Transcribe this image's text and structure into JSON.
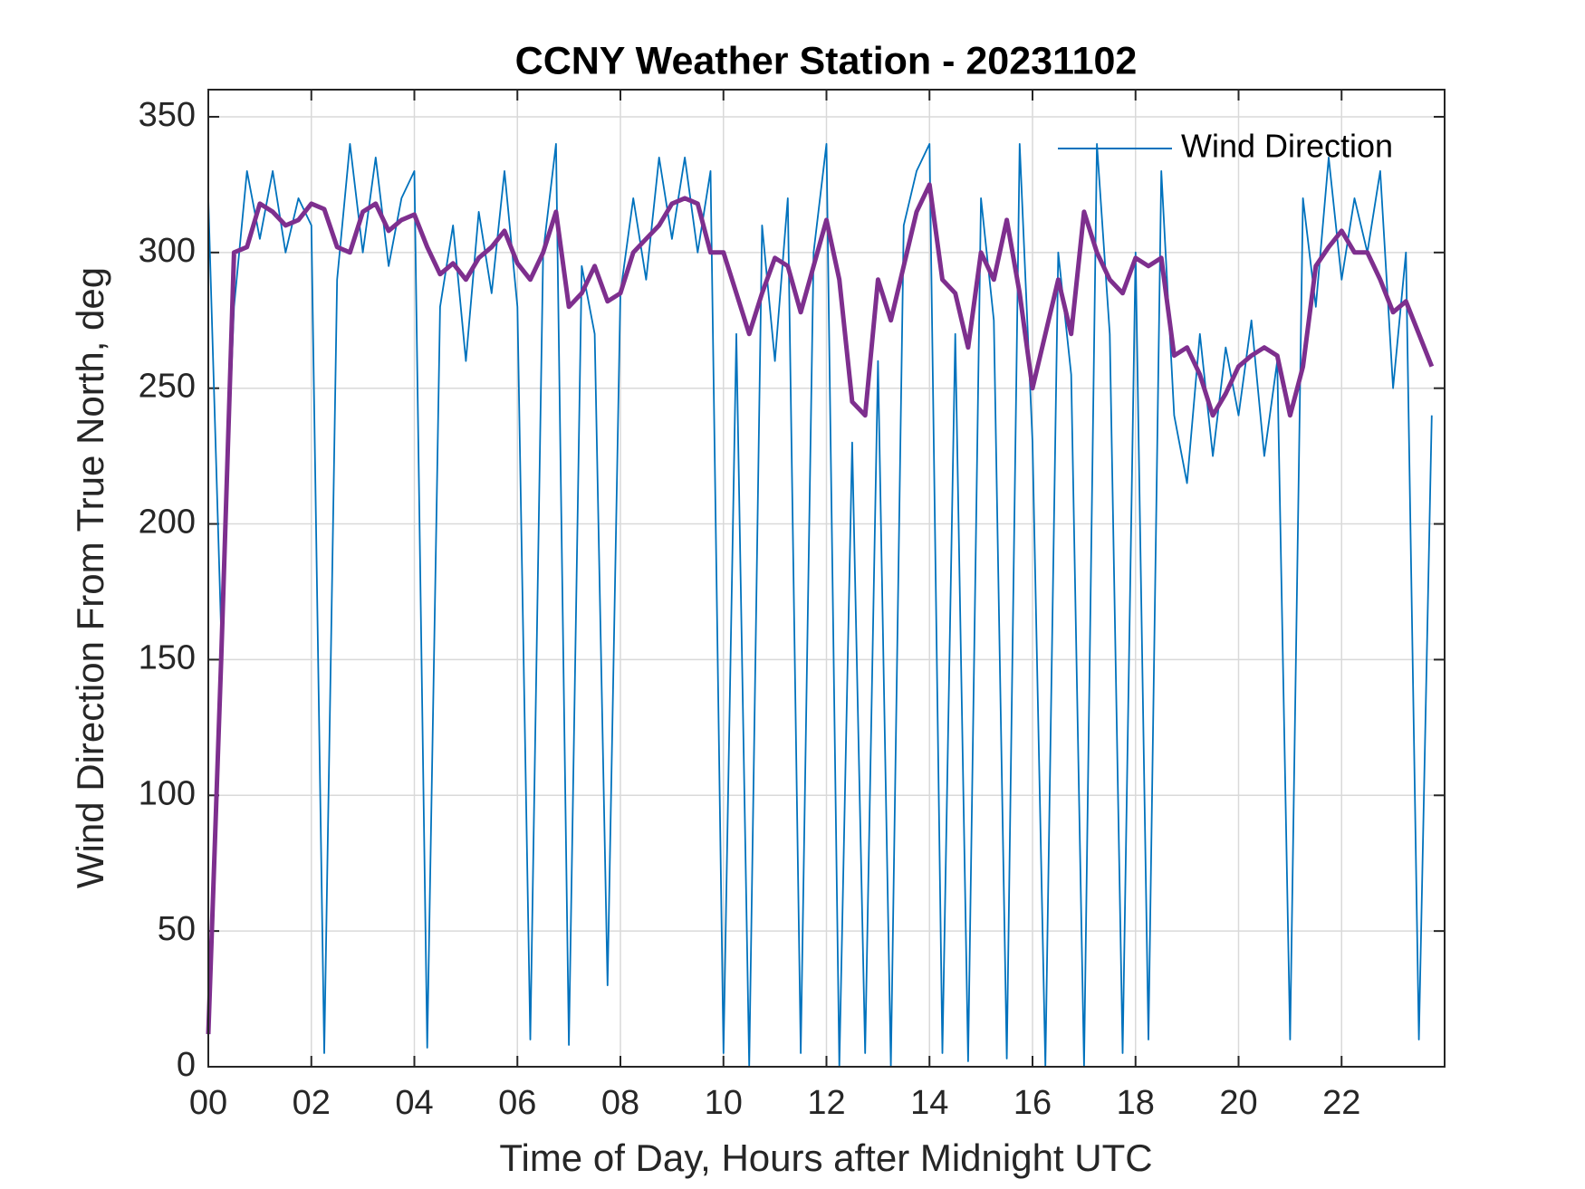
{
  "chart_data": {
    "type": "line",
    "title": "CCNY Weather Station - 20231102",
    "xlabel": "Time of Day, Hours after Midnight UTC",
    "ylabel": "Wind Direction From True North, deg",
    "x": [
      0,
      0.25,
      0.5,
      0.75,
      1,
      1.25,
      1.5,
      1.75,
      2,
      2.25,
      2.5,
      2.75,
      3,
      3.25,
      3.5,
      3.75,
      4,
      4.25,
      4.5,
      4.75,
      5,
      5.25,
      5.5,
      5.75,
      6,
      6.25,
      6.5,
      6.75,
      7,
      7.25,
      7.5,
      7.75,
      8,
      8.25,
      8.5,
      8.75,
      9,
      9.25,
      9.5,
      9.75,
      10,
      10.25,
      10.5,
      10.75,
      11,
      11.25,
      11.5,
      11.75,
      12,
      12.25,
      12.5,
      12.75,
      13,
      13.25,
      13.5,
      13.75,
      14,
      14.25,
      14.5,
      14.75,
      15,
      15.25,
      15.5,
      15.75,
      16,
      16.25,
      16.5,
      16.75,
      17,
      17.25,
      17.5,
      17.75,
      18,
      18.25,
      18.5,
      18.75,
      19,
      19.25,
      19.5,
      19.75,
      20,
      20.25,
      20.5,
      20.75,
      21,
      21.25,
      21.5,
      21.75,
      22,
      22.25,
      22.5,
      22.75,
      23,
      23.25,
      23.5,
      23.75
    ],
    "series": [
      {
        "name": "Wind Direction",
        "color": "#0072bd",
        "values": [
          320,
          160,
          280,
          330,
          305,
          330,
          300,
          320,
          310,
          5,
          290,
          340,
          300,
          335,
          295,
          320,
          330,
          7,
          280,
          310,
          260,
          315,
          285,
          330,
          280,
          10,
          300,
          340,
          8,
          295,
          270,
          30,
          285,
          320,
          290,
          335,
          305,
          335,
          300,
          330,
          5,
          270,
          0,
          310,
          260,
          320,
          5,
          300,
          340,
          0,
          230,
          5,
          260,
          0,
          310,
          330,
          340,
          5,
          270,
          2,
          320,
          275,
          3,
          340,
          230,
          0,
          300,
          255,
          0,
          340,
          270,
          5,
          300,
          10,
          330,
          240,
          215,
          270,
          225,
          265,
          240,
          275,
          225,
          260,
          10,
          320,
          280,
          335,
          290,
          320,
          300,
          330,
          250,
          300,
          10,
          240
        ]
      },
      {
        "color": "#7e2f8e",
        "values": [
          12,
          150,
          300,
          302,
          318,
          315,
          310,
          312,
          318,
          316,
          302,
          300,
          315,
          318,
          308,
          312,
          314,
          302,
          292,
          296,
          290,
          298,
          302,
          308,
          296,
          290,
          300,
          315,
          280,
          285,
          295,
          282,
          285,
          300,
          305,
          310,
          318,
          320,
          318,
          300,
          300,
          285,
          270,
          285,
          298,
          295,
          278,
          295,
          312,
          290,
          245,
          240,
          290,
          275,
          295,
          315,
          325,
          290,
          285,
          265,
          300,
          290,
          312,
          285,
          250,
          270,
          290,
          270,
          315,
          300,
          290,
          285,
          298,
          295,
          298,
          262,
          265,
          255,
          240,
          248,
          258,
          262,
          265,
          262,
          240,
          258,
          295,
          302,
          308,
          300,
          300,
          290,
          278,
          282,
          270,
          258
        ]
      }
    ],
    "xlim": [
      0,
      24
    ],
    "xticks": [
      {
        "value": 0,
        "label": "00"
      },
      {
        "value": 2,
        "label": "02"
      },
      {
        "value": 4,
        "label": "04"
      },
      {
        "value": 6,
        "label": "06"
      },
      {
        "value": 8,
        "label": "08"
      },
      10,
      12,
      14,
      16,
      18,
      20,
      22
    ],
    "ylim": [
      0,
      360
    ],
    "yticks": [
      0,
      50,
      100,
      150,
      200,
      250,
      300,
      350
    ],
    "grid": true,
    "legend": "northeast"
  }
}
